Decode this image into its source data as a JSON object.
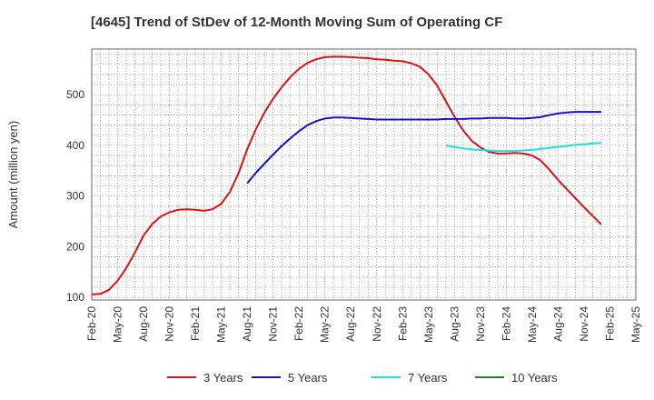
{
  "chart_data": {
    "type": "line",
    "title": "[4645]  Trend of StDev of 12-Month Moving Sum of Operating CF",
    "ylabel": "Amount (million yen)",
    "xlabel": "",
    "ylim": [
      95,
      590
    ],
    "yticks": [
      100,
      200,
      300,
      400,
      500
    ],
    "xlim": [
      "2020-02",
      "2025-05"
    ],
    "xticks": [
      "Feb-20",
      "May-20",
      "Aug-20",
      "Nov-20",
      "Feb-21",
      "May-21",
      "Aug-21",
      "Nov-21",
      "Feb-22",
      "May-22",
      "Aug-22",
      "Nov-22",
      "Feb-23",
      "May-23",
      "Aug-23",
      "Nov-23",
      "Feb-24",
      "May-24",
      "Aug-24",
      "Nov-24",
      "Feb-25",
      "May-25"
    ],
    "grid": true,
    "legend_position": "bottom",
    "series": [
      {
        "name": "3 Years",
        "color": "#dd1111",
        "points": [
          [
            "2020-02",
            106
          ],
          [
            "2020-03",
            107
          ],
          [
            "2020-04",
            115
          ],
          [
            "2020-05",
            133
          ],
          [
            "2020-06",
            158
          ],
          [
            "2020-07",
            188
          ],
          [
            "2020-08",
            222
          ],
          [
            "2020-09",
            245
          ],
          [
            "2020-10",
            260
          ],
          [
            "2020-11",
            268
          ],
          [
            "2020-12",
            273
          ],
          [
            "2021-01",
            274
          ],
          [
            "2021-02",
            273
          ],
          [
            "2021-03",
            271
          ],
          [
            "2021-04",
            274
          ],
          [
            "2021-05",
            285
          ],
          [
            "2021-06",
            308
          ],
          [
            "2021-07",
            345
          ],
          [
            "2021-08",
            392
          ],
          [
            "2021-09",
            432
          ],
          [
            "2021-10",
            465
          ],
          [
            "2021-11",
            492
          ],
          [
            "2021-12",
            515
          ],
          [
            "2022-01",
            535
          ],
          [
            "2022-02",
            551
          ],
          [
            "2022-03",
            563
          ],
          [
            "2022-04",
            570
          ],
          [
            "2022-05",
            574
          ],
          [
            "2022-06",
            575
          ],
          [
            "2022-07",
            575
          ],
          [
            "2022-08",
            574
          ],
          [
            "2022-09",
            573
          ],
          [
            "2022-10",
            572
          ],
          [
            "2022-11",
            570
          ],
          [
            "2022-12",
            569
          ],
          [
            "2023-01",
            567
          ],
          [
            "2023-02",
            566
          ],
          [
            "2023-03",
            562
          ],
          [
            "2023-04",
            555
          ],
          [
            "2023-05",
            540
          ],
          [
            "2023-06",
            518
          ],
          [
            "2023-07",
            487
          ],
          [
            "2023-08",
            457
          ],
          [
            "2023-09",
            430
          ],
          [
            "2023-10",
            409
          ],
          [
            "2023-11",
            396
          ],
          [
            "2023-12",
            387
          ],
          [
            "2024-01",
            384
          ],
          [
            "2024-02",
            384
          ],
          [
            "2024-03",
            385
          ],
          [
            "2024-04",
            384
          ],
          [
            "2024-05",
            380
          ],
          [
            "2024-06",
            370
          ],
          [
            "2024-07",
            352
          ],
          [
            "2024-08",
            332
          ],
          [
            "2024-09",
            314
          ],
          [
            "2024-10",
            296
          ],
          [
            "2024-11",
            278
          ],
          [
            "2024-12",
            261
          ],
          [
            "2025-01",
            244
          ]
        ]
      },
      {
        "name": "5 Years",
        "color": "#1111cc",
        "points": [
          [
            "2021-08",
            325
          ],
          [
            "2021-09",
            346
          ],
          [
            "2021-10",
            364
          ],
          [
            "2021-11",
            382
          ],
          [
            "2021-12",
            399
          ],
          [
            "2022-01",
            414
          ],
          [
            "2022-02",
            428
          ],
          [
            "2022-03",
            440
          ],
          [
            "2022-04",
            448
          ],
          [
            "2022-05",
            453
          ],
          [
            "2022-06",
            455
          ],
          [
            "2022-07",
            455
          ],
          [
            "2022-08",
            454
          ],
          [
            "2022-09",
            453
          ],
          [
            "2022-10",
            452
          ],
          [
            "2022-11",
            451
          ],
          [
            "2022-12",
            451
          ],
          [
            "2023-01",
            451
          ],
          [
            "2023-02",
            451
          ],
          [
            "2023-03",
            451
          ],
          [
            "2023-04",
            451
          ],
          [
            "2023-05",
            451
          ],
          [
            "2023-06",
            451
          ],
          [
            "2023-07",
            452
          ],
          [
            "2023-08",
            452
          ],
          [
            "2023-09",
            452
          ],
          [
            "2023-10",
            453
          ],
          [
            "2023-11",
            453
          ],
          [
            "2023-12",
            454
          ],
          [
            "2024-01",
            454
          ],
          [
            "2024-02",
            454
          ],
          [
            "2024-03",
            453
          ],
          [
            "2024-04",
            453
          ],
          [
            "2024-05",
            454
          ],
          [
            "2024-06",
            456
          ],
          [
            "2024-07",
            460
          ],
          [
            "2024-08",
            463
          ],
          [
            "2024-09",
            465
          ],
          [
            "2024-10",
            466
          ],
          [
            "2024-11",
            466
          ],
          [
            "2024-12",
            466
          ],
          [
            "2025-01",
            466
          ]
        ]
      },
      {
        "name": "7 Years",
        "color": "#22dddd",
        "points": [
          [
            "2023-07",
            400
          ],
          [
            "2023-08",
            397
          ],
          [
            "2023-09",
            394
          ],
          [
            "2023-10",
            392
          ],
          [
            "2023-11",
            391
          ],
          [
            "2023-12",
            390
          ],
          [
            "2024-01",
            389
          ],
          [
            "2024-02",
            389
          ],
          [
            "2024-03",
            389
          ],
          [
            "2024-04",
            390
          ],
          [
            "2024-05",
            391
          ],
          [
            "2024-06",
            393
          ],
          [
            "2024-07",
            395
          ],
          [
            "2024-08",
            397
          ],
          [
            "2024-09",
            399
          ],
          [
            "2024-10",
            401
          ],
          [
            "2024-11",
            402
          ],
          [
            "2024-12",
            404
          ],
          [
            "2025-01",
            405
          ]
        ]
      },
      {
        "name": "10 Years",
        "color": "#228822",
        "points": []
      }
    ]
  }
}
